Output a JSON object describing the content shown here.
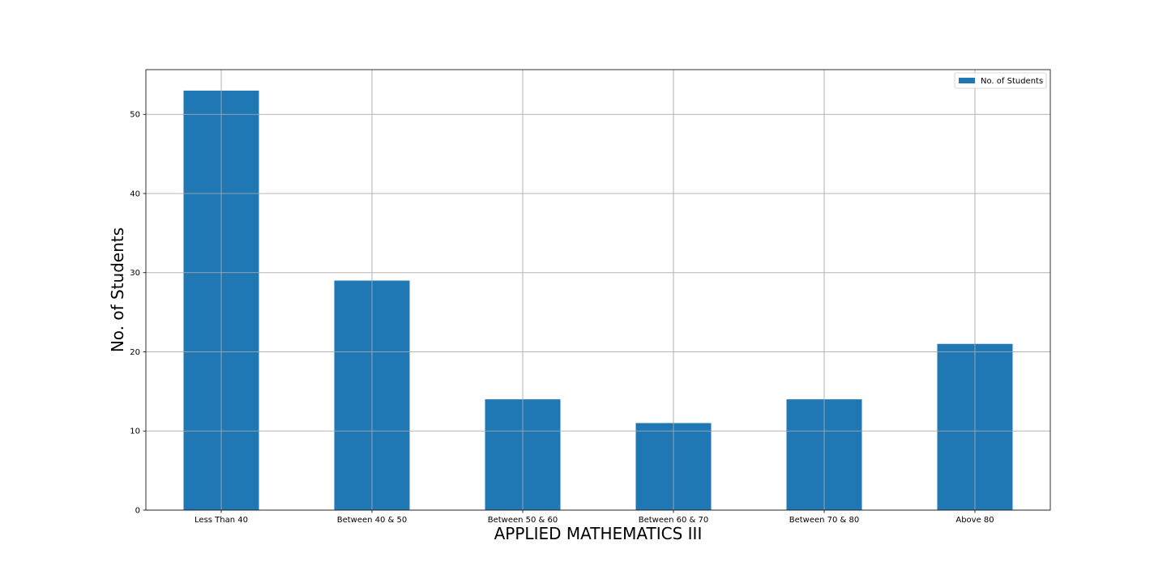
{
  "chart_data": {
    "type": "bar",
    "categories": [
      "Less Than 40",
      "Between 40 & 50",
      "Between 50 & 60",
      "Between 60 & 70",
      "Between 70 & 80",
      "Above 80"
    ],
    "series": [
      {
        "name": "No. of Students",
        "values": [
          53,
          29,
          14,
          11,
          14,
          21
        ]
      }
    ],
    "xlabel": "APPLIED MATHEMATICS III",
    "ylabel": "No. of Students",
    "ylim": [
      0,
      55.65
    ],
    "yticks": [
      0,
      10,
      20,
      30,
      40,
      50
    ],
    "grid": true,
    "legend_position": "top-right",
    "bar_color": "#1f77b4"
  }
}
